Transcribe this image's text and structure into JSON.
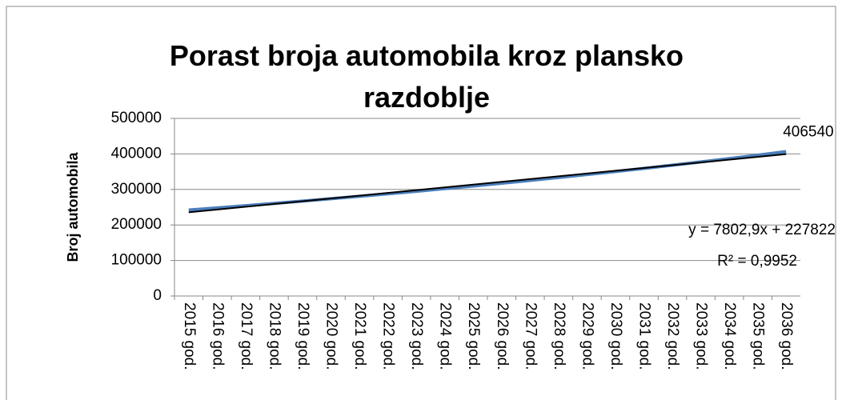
{
  "chart_data": {
    "type": "line",
    "title": "Porast broja automobila kroz plansko razdoblje",
    "y_label": "Broj automobila",
    "categories": [
      "2015 god.",
      "2016 god.",
      "2017 god.",
      "2018 god.",
      "2019 god.",
      "2020 god.",
      "2021 god.",
      "2022 god.",
      "2023 god.",
      "2024 god.",
      "2025 god.",
      "2026 god.",
      "2027 god.",
      "2028 god.",
      "2029 god.",
      "2030 god.",
      "2031 god.",
      "2032 god.",
      "2033 god.",
      "2034 god.",
      "2035 god.",
      "2036 god."
    ],
    "series": [
      {
        "color": "#4a7ebb",
        "values": [
          242000,
          248050,
          254250,
          260610,
          267130,
          273810,
          280650,
          287670,
          294860,
          302230,
          309790,
          317530,
          325470,
          333610,
          341950,
          350500,
          359260,
          368240,
          377450,
          386880,
          396550,
          406540
        ]
      }
    ],
    "trendline": {
      "slope": 7802.9,
      "intercept": 227822,
      "color": "#000000",
      "equation": "y = 7802,9x + 227822",
      "r_squared": "R² = 0,9952"
    },
    "ylim": [
      0,
      500000
    ],
    "yticks": [
      0,
      100000,
      200000,
      300000,
      400000,
      500000
    ],
    "grid": true
  }
}
